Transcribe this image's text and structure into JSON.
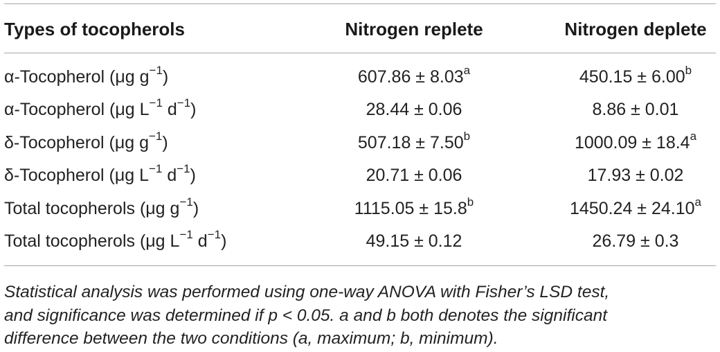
{
  "table": {
    "headers": [
      "Types of tocopherols",
      "Nitrogen replete",
      "Nitrogen deplete"
    ],
    "rows": [
      {
        "type_pre": "α-Tocopherol (μg g",
        "type_sup1": "−1",
        "type_mid": ")",
        "type_sup2": "",
        "type_post": "",
        "replete": "607.86 ± 8.03",
        "replete_sup": "a",
        "deplete": "450.15 ± 6.00",
        "deplete_sup": "b"
      },
      {
        "type_pre": "α-Tocopherol (μg L",
        "type_sup1": "−1",
        "type_mid": " d",
        "type_sup2": "−1",
        "type_post": ")",
        "replete": "28.44 ± 0.06",
        "replete_sup": "",
        "deplete": "8.86 ± 0.01",
        "deplete_sup": ""
      },
      {
        "type_pre": "δ-Tocopherol (μg g",
        "type_sup1": "−1",
        "type_mid": ")",
        "type_sup2": "",
        "type_post": "",
        "replete": "507.18 ± 7.50",
        "replete_sup": "b",
        "deplete": "1000.09 ± 18.4",
        "deplete_sup": "a"
      },
      {
        "type_pre": "δ-Tocopherol (μg L",
        "type_sup1": "−1",
        "type_mid": " d",
        "type_sup2": "−1",
        "type_post": ")",
        "replete": "20.71 ± 0.06",
        "replete_sup": "",
        "deplete": "17.93 ± 0.02",
        "deplete_sup": ""
      },
      {
        "type_pre": "Total tocopherols (μg g",
        "type_sup1": "−1",
        "type_mid": ")",
        "type_sup2": "",
        "type_post": "",
        "replete": "1115.05 ± 15.8",
        "replete_sup": "b",
        "deplete": "1450.24 ± 24.10",
        "deplete_sup": "a"
      },
      {
        "type_pre": "Total tocopherols (μg L",
        "type_sup1": "−1",
        "type_mid": " d",
        "type_sup2": "−1",
        "type_post": ")",
        "replete": "49.15 ± 0.12",
        "replete_sup": "",
        "deplete": "26.79 ± 0.3",
        "deplete_sup": ""
      }
    ]
  },
  "footnote": [
    "Statistical analysis was performed using one-way ANOVA with Fisher’s LSD test,",
    "and significance was determined if p < 0.05. a and b both denotes the significant",
    "difference between the two conditions (a, maximum; b, minimum)."
  ]
}
